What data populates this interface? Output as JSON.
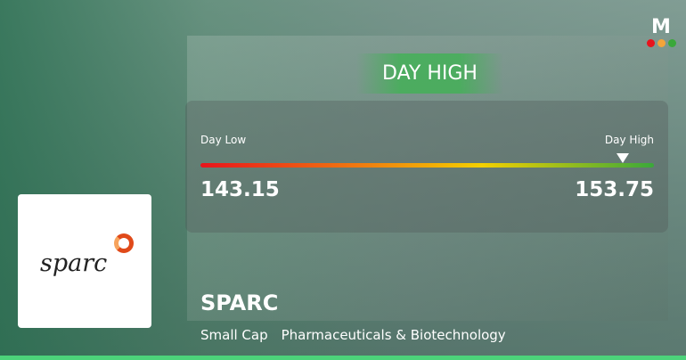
{
  "banner": "DAY HIGH",
  "range": {
    "low_label": "Day Low",
    "high_label": "Day High",
    "low": "143.15",
    "high": "153.75",
    "marker_position": "high"
  },
  "company": {
    "name": "SPARC",
    "logo_text": "sparc",
    "cap": "Small Cap",
    "sector": "Pharmaceuticals & Biotechnology"
  },
  "brand": {
    "logo_letter": "M",
    "dot_colors": [
      "#e8141c",
      "#f4a43a",
      "#3aa83a"
    ]
  },
  "colors": {
    "accent": "#3cb450",
    "bar_start": "#e8141c",
    "bar_end": "#3aa83a"
  }
}
